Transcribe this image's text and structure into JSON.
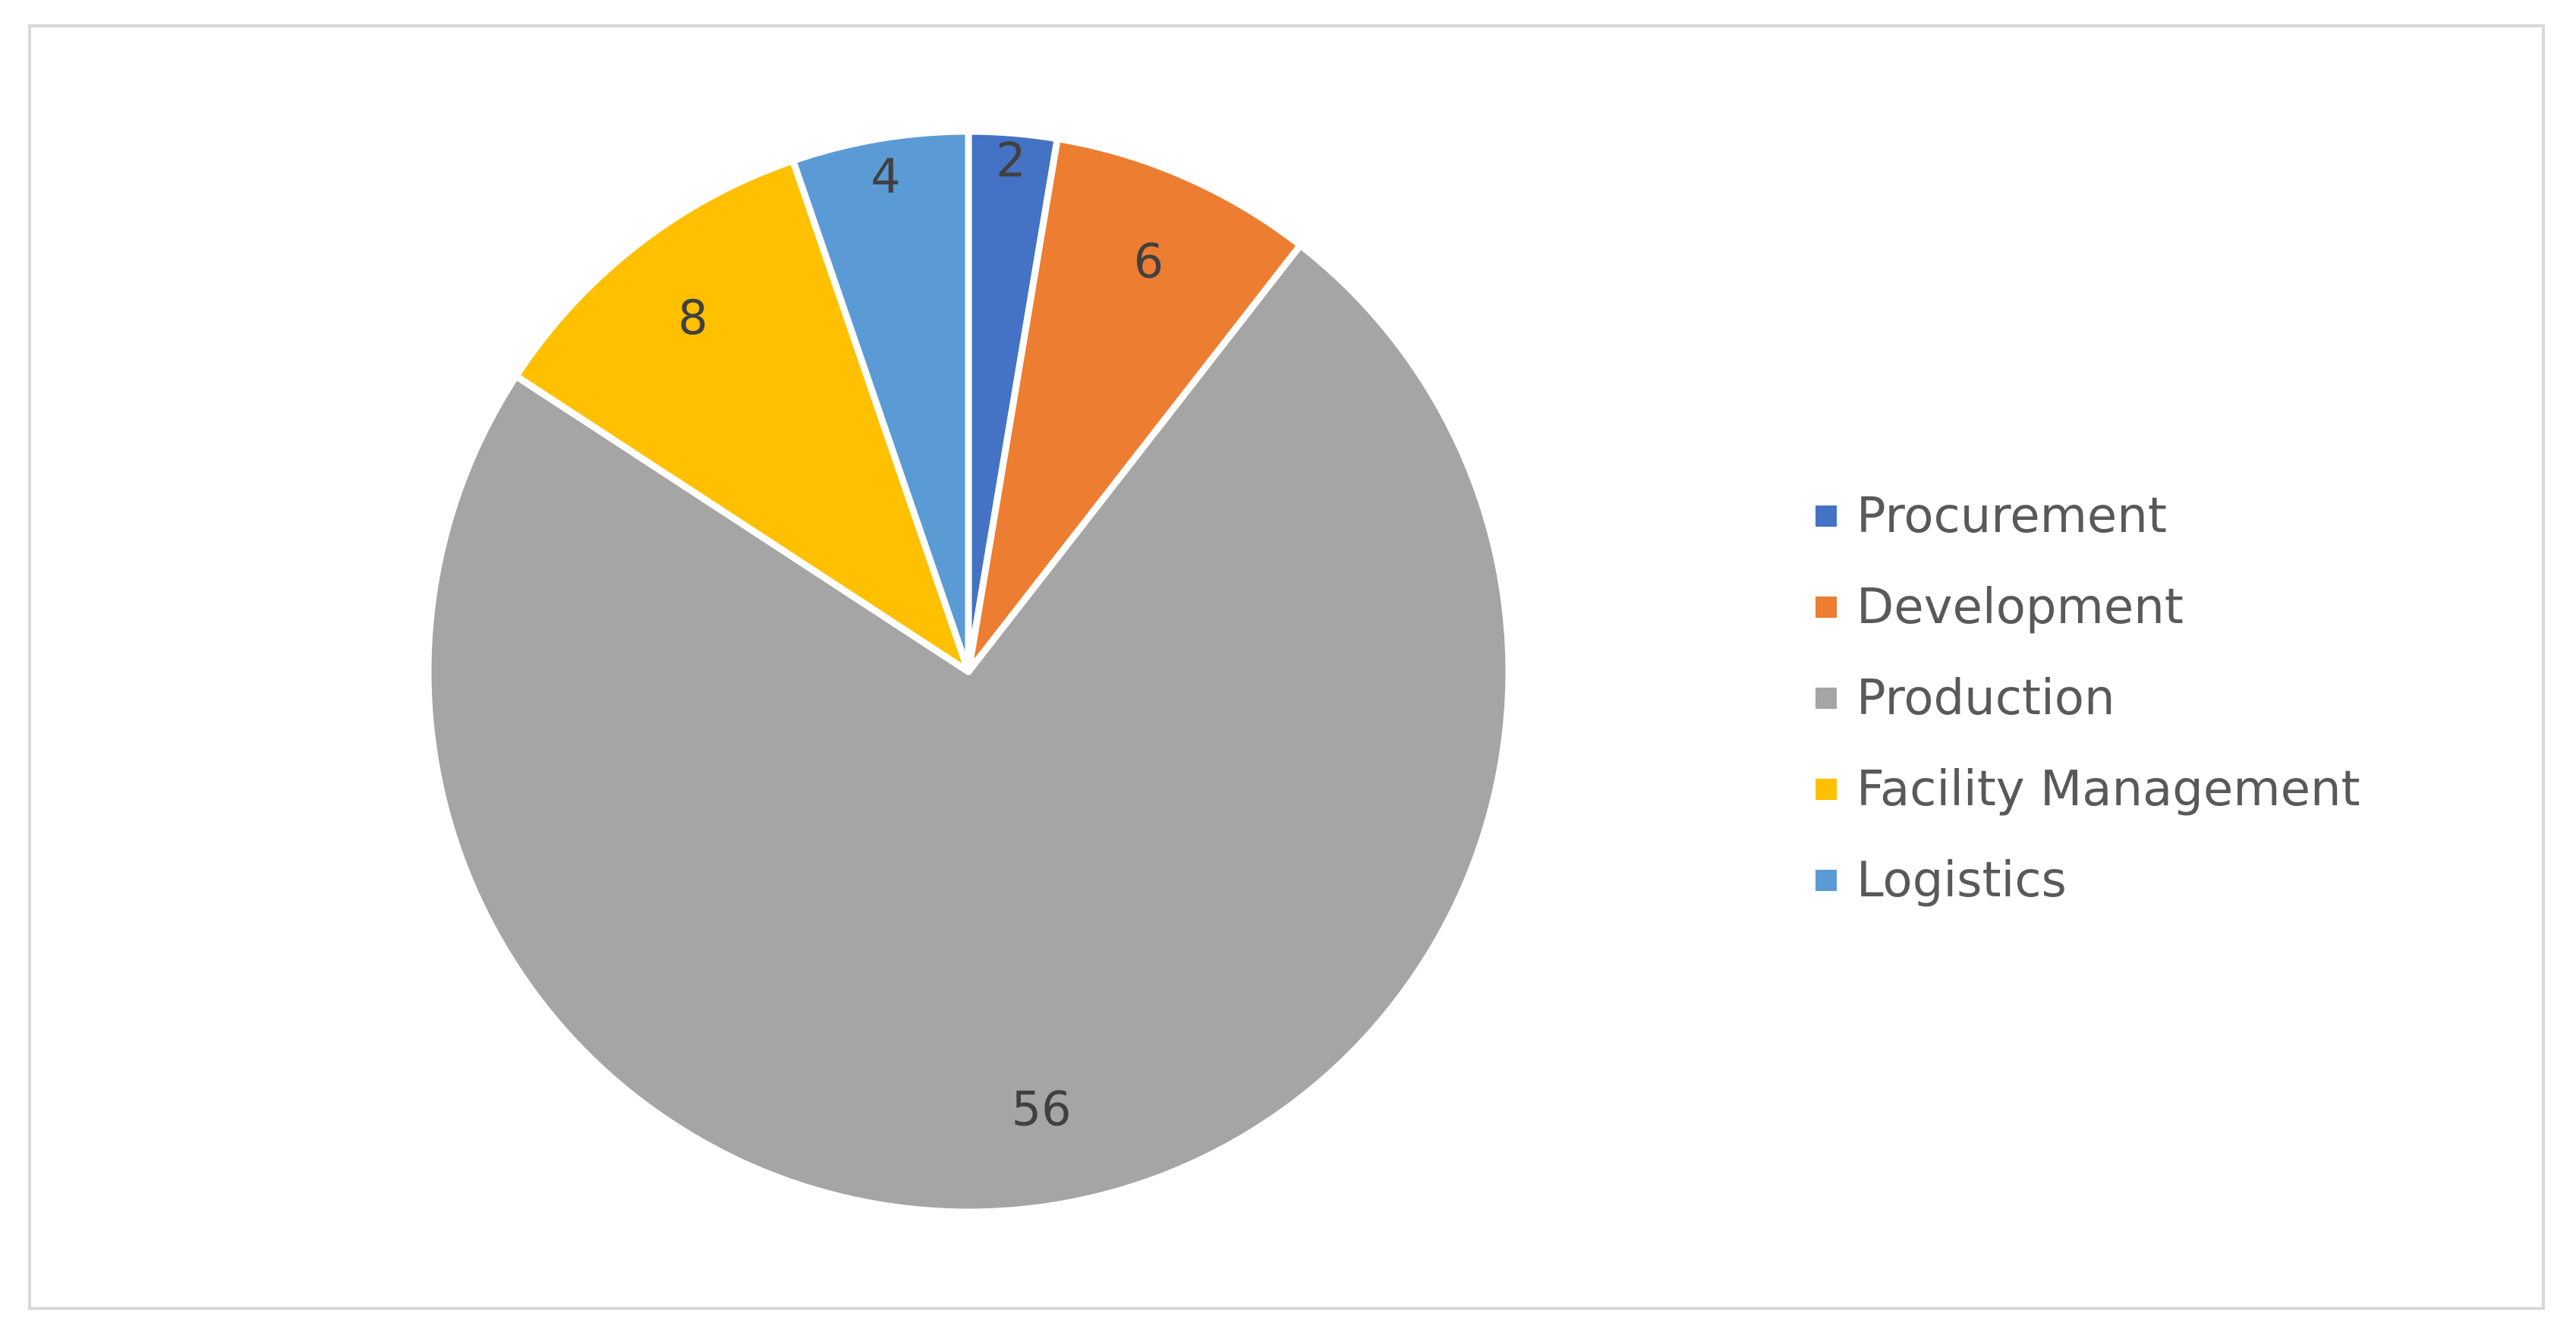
{
  "chart_data": {
    "type": "pie",
    "categories": [
      "Procurement",
      "Development",
      "Production",
      "Facility Management",
      "Logistics"
    ],
    "values": [
      2,
      6,
      56,
      8,
      4
    ],
    "colors": [
      "#4472C4",
      "#ED7D31",
      "#A5A5A5",
      "#FFC000",
      "#5B9BD5"
    ],
    "data_labels": [
      "2",
      "6",
      "56",
      "8",
      "4"
    ],
    "start_angle_deg": 0,
    "direction": "clockwise",
    "slice_border_color": "#ffffff",
    "legend_position": "right",
    "title": ""
  },
  "legend": {
    "items": [
      {
        "label": "Procurement",
        "color": "#4472C4"
      },
      {
        "label": "Development",
        "color": "#ED7D31"
      },
      {
        "label": "Production",
        "color": "#A5A5A5"
      },
      {
        "label": "Facility Management",
        "color": "#FFC000"
      },
      {
        "label": "Logistics",
        "color": "#5B9BD5"
      }
    ]
  }
}
